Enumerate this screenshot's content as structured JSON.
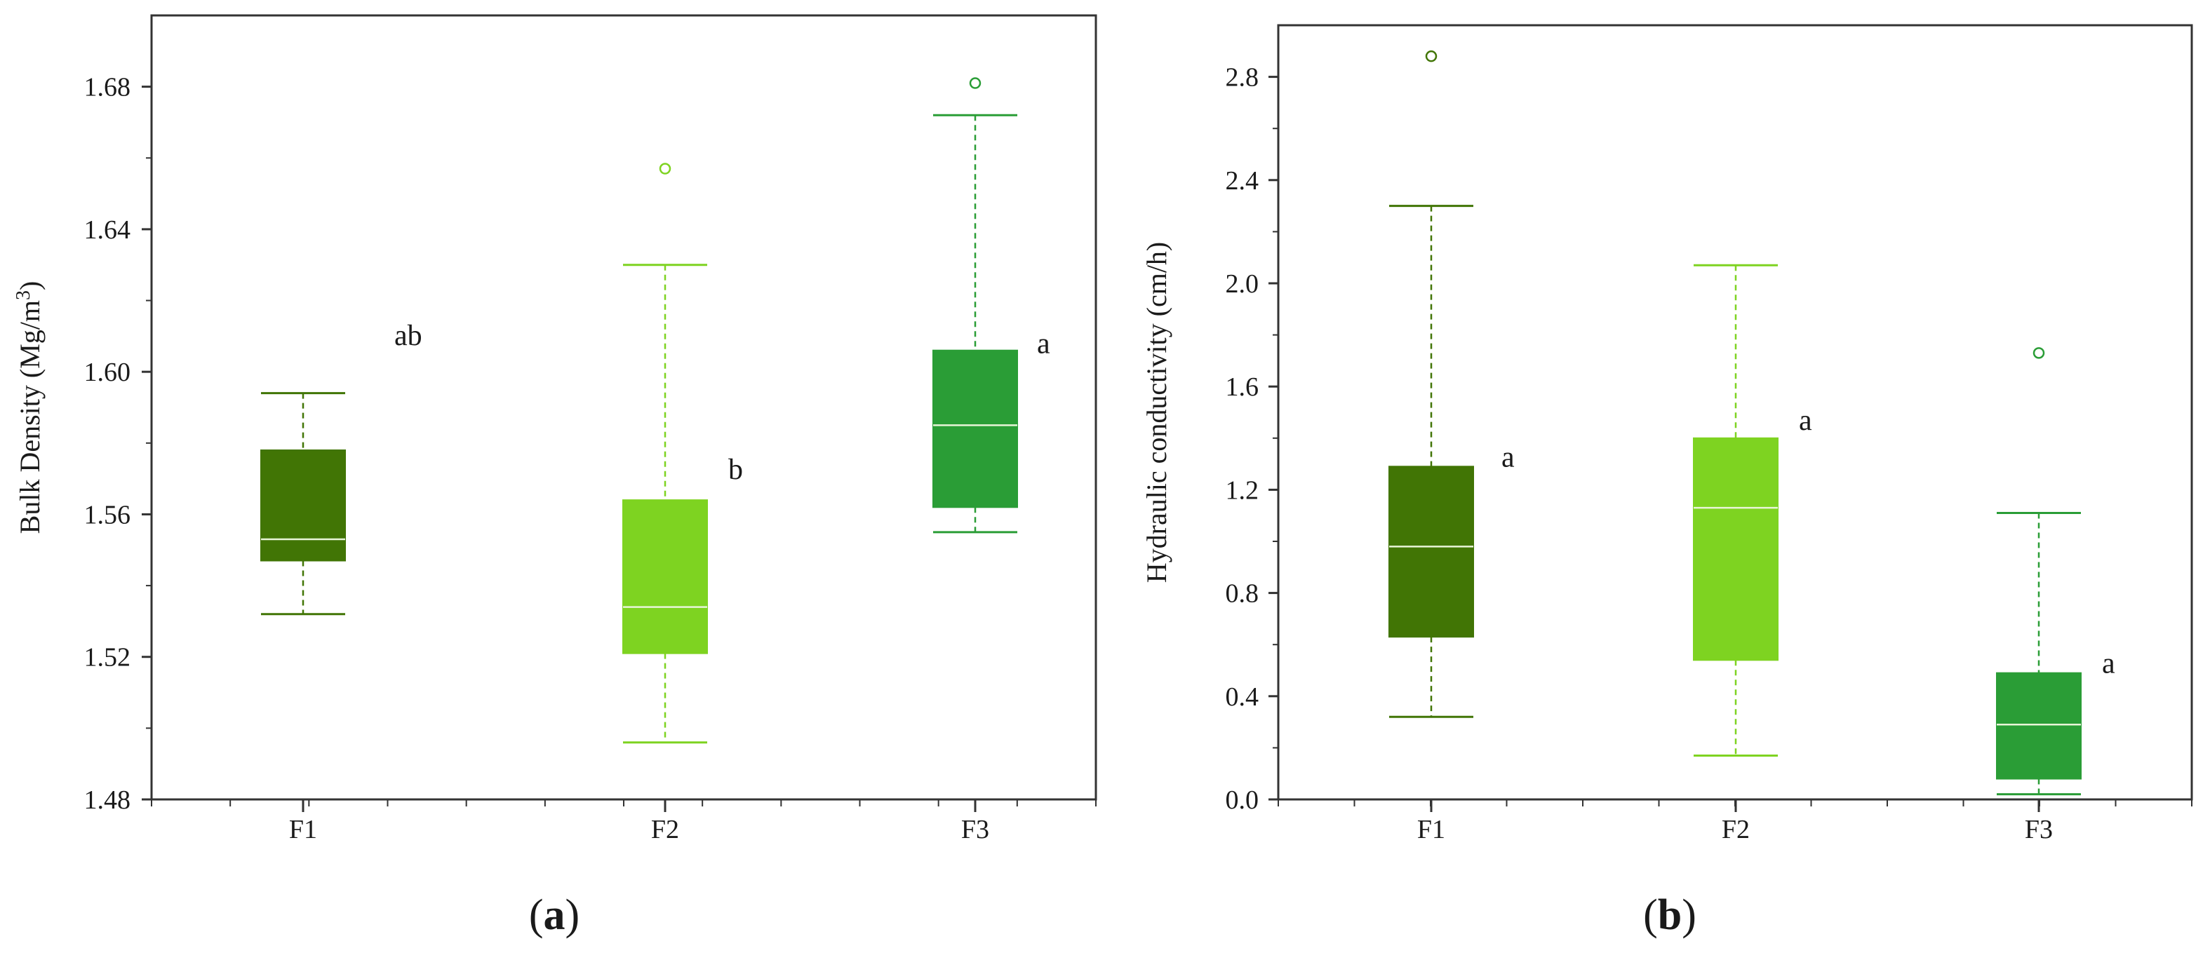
{
  "colors": {
    "F1": "#417505",
    "F2": "#7ed321",
    "F3": "#2a9d36",
    "median": "#e8f5d8",
    "axis": "#333333"
  },
  "chart_data": [
    {
      "type": "box",
      "panel": "a",
      "panel_label": "a",
      "ylabel": "Bulk Density (Mg/m",
      "ylabel_sup": "3",
      "ylabel_end": ")",
      "ylim": [
        1.48,
        1.7
      ],
      "yticks": [
        1.48,
        1.52,
        1.56,
        1.6,
        1.64,
        1.68
      ],
      "ytick_labels": [
        "1.48",
        "1.52",
        "1.56",
        "1.60",
        "1.64",
        "1.68"
      ],
      "categories": [
        "F1",
        "F2",
        "F3"
      ],
      "boxes": [
        {
          "name": "F1",
          "whisker_low": 1.532,
          "q1": 1.547,
          "median": 1.553,
          "q3": 1.578,
          "whisker_high": 1.594,
          "outliers": [],
          "sig": "ab"
        },
        {
          "name": "F2",
          "whisker_low": 1.496,
          "q1": 1.521,
          "median": 1.534,
          "q3": 1.564,
          "whisker_high": 1.63,
          "outliers": [
            1.657
          ],
          "sig": "b"
        },
        {
          "name": "F3",
          "whisker_low": 1.555,
          "q1": 1.562,
          "median": 1.585,
          "q3": 1.606,
          "whisker_high": 1.672,
          "outliers": [
            1.681
          ],
          "sig": "a"
        }
      ]
    },
    {
      "type": "box",
      "panel": "b",
      "panel_label": "b",
      "ylabel": "Hydraulic conductivity (cm/h)",
      "ylabel_sup": "",
      "ylabel_end": "",
      "ylim": [
        0.0,
        3.0
      ],
      "yticks": [
        0.0,
        0.4,
        0.8,
        1.2,
        1.6,
        2.0,
        2.4,
        2.8
      ],
      "ytick_labels": [
        "0.0",
        "0.4",
        "0.8",
        "1.2",
        "1.6",
        "2.0",
        "2.4",
        "2.8"
      ],
      "categories": [
        "F1",
        "F2",
        "F3"
      ],
      "boxes": [
        {
          "name": "F1",
          "whisker_low": 0.32,
          "q1": 0.63,
          "median": 0.98,
          "q3": 1.29,
          "whisker_high": 2.3,
          "outliers": [
            2.88
          ],
          "sig": "a"
        },
        {
          "name": "F2",
          "whisker_low": 0.17,
          "q1": 0.54,
          "median": 1.13,
          "q3": 1.4,
          "whisker_high": 2.07,
          "outliers": [],
          "sig": "a"
        },
        {
          "name": "F3",
          "whisker_low": 0.02,
          "q1": 0.08,
          "median": 0.29,
          "q3": 0.49,
          "whisker_high": 1.11,
          "outliers": [
            1.73
          ],
          "sig": "a"
        }
      ]
    }
  ]
}
